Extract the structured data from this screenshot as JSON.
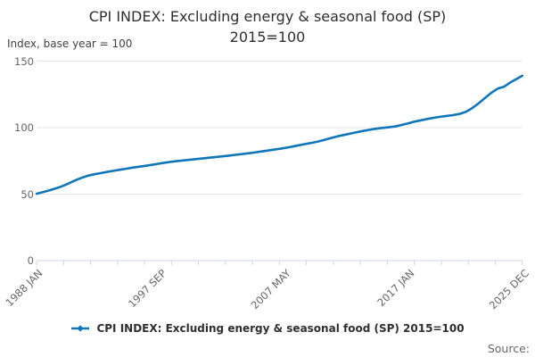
{
  "source": {
    "label": "Source:"
  },
  "colors": {
    "series_blue": "#1076b9",
    "gridline_gray": "#e6e6e6",
    "axis_periwinkle": "#ccd6eb"
  },
  "chart_data": {
    "type": "line",
    "title": "CPI INDEX: Excluding energy & seasonal food (SP) 2015=100",
    "subtitle": "Index, base year = 100",
    "legend_position": "bottom-center",
    "grid": "horizontal-only",
    "ylim": [
      0,
      150
    ],
    "y_ticks": [
      0,
      50,
      100,
      150
    ],
    "xlim_year": [
      1988.0,
      2025.9167
    ],
    "x_tick_labels": [
      "1988 JAN",
      "1997 SEP",
      "2007 MAY",
      "2017 JAN",
      "2025 DEC"
    ],
    "x_tick_positions_year": [
      1988.0,
      1997.6667,
      2007.3333,
      2017.0,
      2025.9167
    ],
    "x_minor_tick_count": 19,
    "series": [
      {
        "name": "CPI INDEX: Excluding energy & seasonal food (SP) 2015=100",
        "color": "#1076b9",
        "points": [
          [
            1988.0,
            50.3
          ],
          [
            1988.5,
            51.5
          ],
          [
            1989.0,
            52.8
          ],
          [
            1989.5,
            54.3
          ],
          [
            1990.0,
            55.9
          ],
          [
            1990.5,
            58.0
          ],
          [
            1991.0,
            60.3
          ],
          [
            1991.5,
            62.2
          ],
          [
            1992.0,
            63.8
          ],
          [
            1992.5,
            64.9
          ],
          [
            1993.0,
            65.8
          ],
          [
            1993.5,
            66.7
          ],
          [
            1994.0,
            67.5
          ],
          [
            1994.5,
            68.3
          ],
          [
            1995.0,
            69.1
          ],
          [
            1995.5,
            69.9
          ],
          [
            1996.0,
            70.6
          ],
          [
            1996.5,
            71.3
          ],
          [
            1997.0,
            72.0
          ],
          [
            1997.5,
            72.8
          ],
          [
            1998.0,
            73.6
          ],
          [
            1998.5,
            74.3
          ],
          [
            1999.0,
            74.9
          ],
          [
            1999.5,
            75.4
          ],
          [
            2000.0,
            75.9
          ],
          [
            2000.5,
            76.4
          ],
          [
            2001.0,
            76.9
          ],
          [
            2001.5,
            77.4
          ],
          [
            2002.0,
            77.9
          ],
          [
            2002.5,
            78.4
          ],
          [
            2003.0,
            78.9
          ],
          [
            2003.5,
            79.5
          ],
          [
            2004.0,
            80.1
          ],
          [
            2004.5,
            80.7
          ],
          [
            2005.0,
            81.3
          ],
          [
            2005.5,
            82.0
          ],
          [
            2006.0,
            82.7
          ],
          [
            2006.5,
            83.4
          ],
          [
            2007.0,
            84.1
          ],
          [
            2007.5,
            84.9
          ],
          [
            2008.0,
            85.8
          ],
          [
            2008.5,
            86.8
          ],
          [
            2009.0,
            87.7
          ],
          [
            2009.5,
            88.6
          ],
          [
            2010.0,
            89.6
          ],
          [
            2010.5,
            90.9
          ],
          [
            2011.0,
            92.2
          ],
          [
            2011.5,
            93.5
          ],
          [
            2012.0,
            94.5
          ],
          [
            2012.5,
            95.6
          ],
          [
            2013.0,
            96.6
          ],
          [
            2013.5,
            97.5
          ],
          [
            2014.0,
            98.4
          ],
          [
            2014.5,
            99.2
          ],
          [
            2015.0,
            99.8
          ],
          [
            2015.5,
            100.3
          ],
          [
            2016.0,
            100.9
          ],
          [
            2016.5,
            102.0
          ],
          [
            2017.0,
            103.2
          ],
          [
            2017.5,
            104.5
          ],
          [
            2018.0,
            105.5
          ],
          [
            2018.5,
            106.5
          ],
          [
            2019.0,
            107.4
          ],
          [
            2019.5,
            108.1
          ],
          [
            2020.0,
            108.8
          ],
          [
            2020.5,
            109.4
          ],
          [
            2021.0,
            110.3
          ],
          [
            2021.5,
            111.8
          ],
          [
            2022.0,
            114.6
          ],
          [
            2022.5,
            118.2
          ],
          [
            2023.0,
            122.2
          ],
          [
            2023.5,
            126.2
          ],
          [
            2024.0,
            129.3
          ],
          [
            2024.5,
            130.8
          ],
          [
            2025.0,
            134.0
          ],
          [
            2025.5,
            136.8
          ],
          [
            2025.92,
            139.0
          ]
        ]
      }
    ]
  }
}
